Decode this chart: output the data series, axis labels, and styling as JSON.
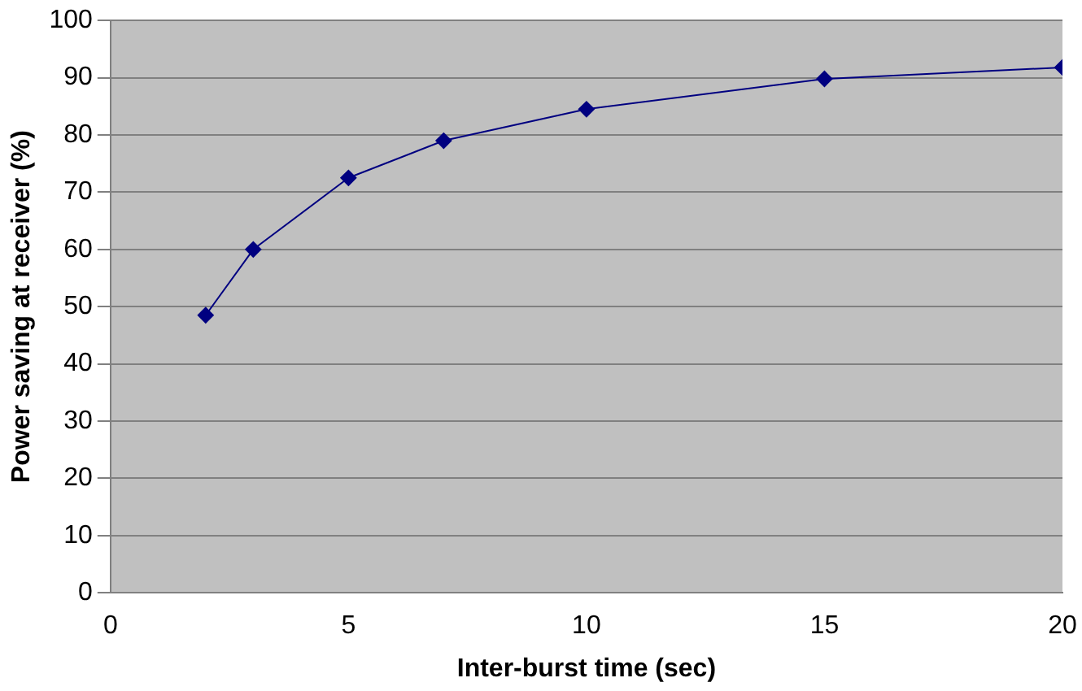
{
  "chart_data": {
    "type": "line",
    "xlabel": "Inter-burst time (sec)",
    "ylabel": "Power saving at receiver (%)",
    "x": [
      2,
      3,
      5,
      7,
      10,
      15,
      20
    ],
    "series": [
      {
        "color": "#000080",
        "values": [
          48.5,
          60,
          72.5,
          79,
          84.5,
          89.8,
          91.8
        ]
      }
    ],
    "xlim": [
      0,
      20
    ],
    "xticks": [
      0,
      5,
      10,
      15,
      20
    ],
    "ylim": [
      0,
      100
    ],
    "yticks": [
      0,
      10,
      20,
      30,
      40,
      50,
      60,
      70,
      80,
      90,
      100
    ],
    "grid": "y",
    "legend": false,
    "marker": "diamond",
    "line_style": "solid"
  }
}
